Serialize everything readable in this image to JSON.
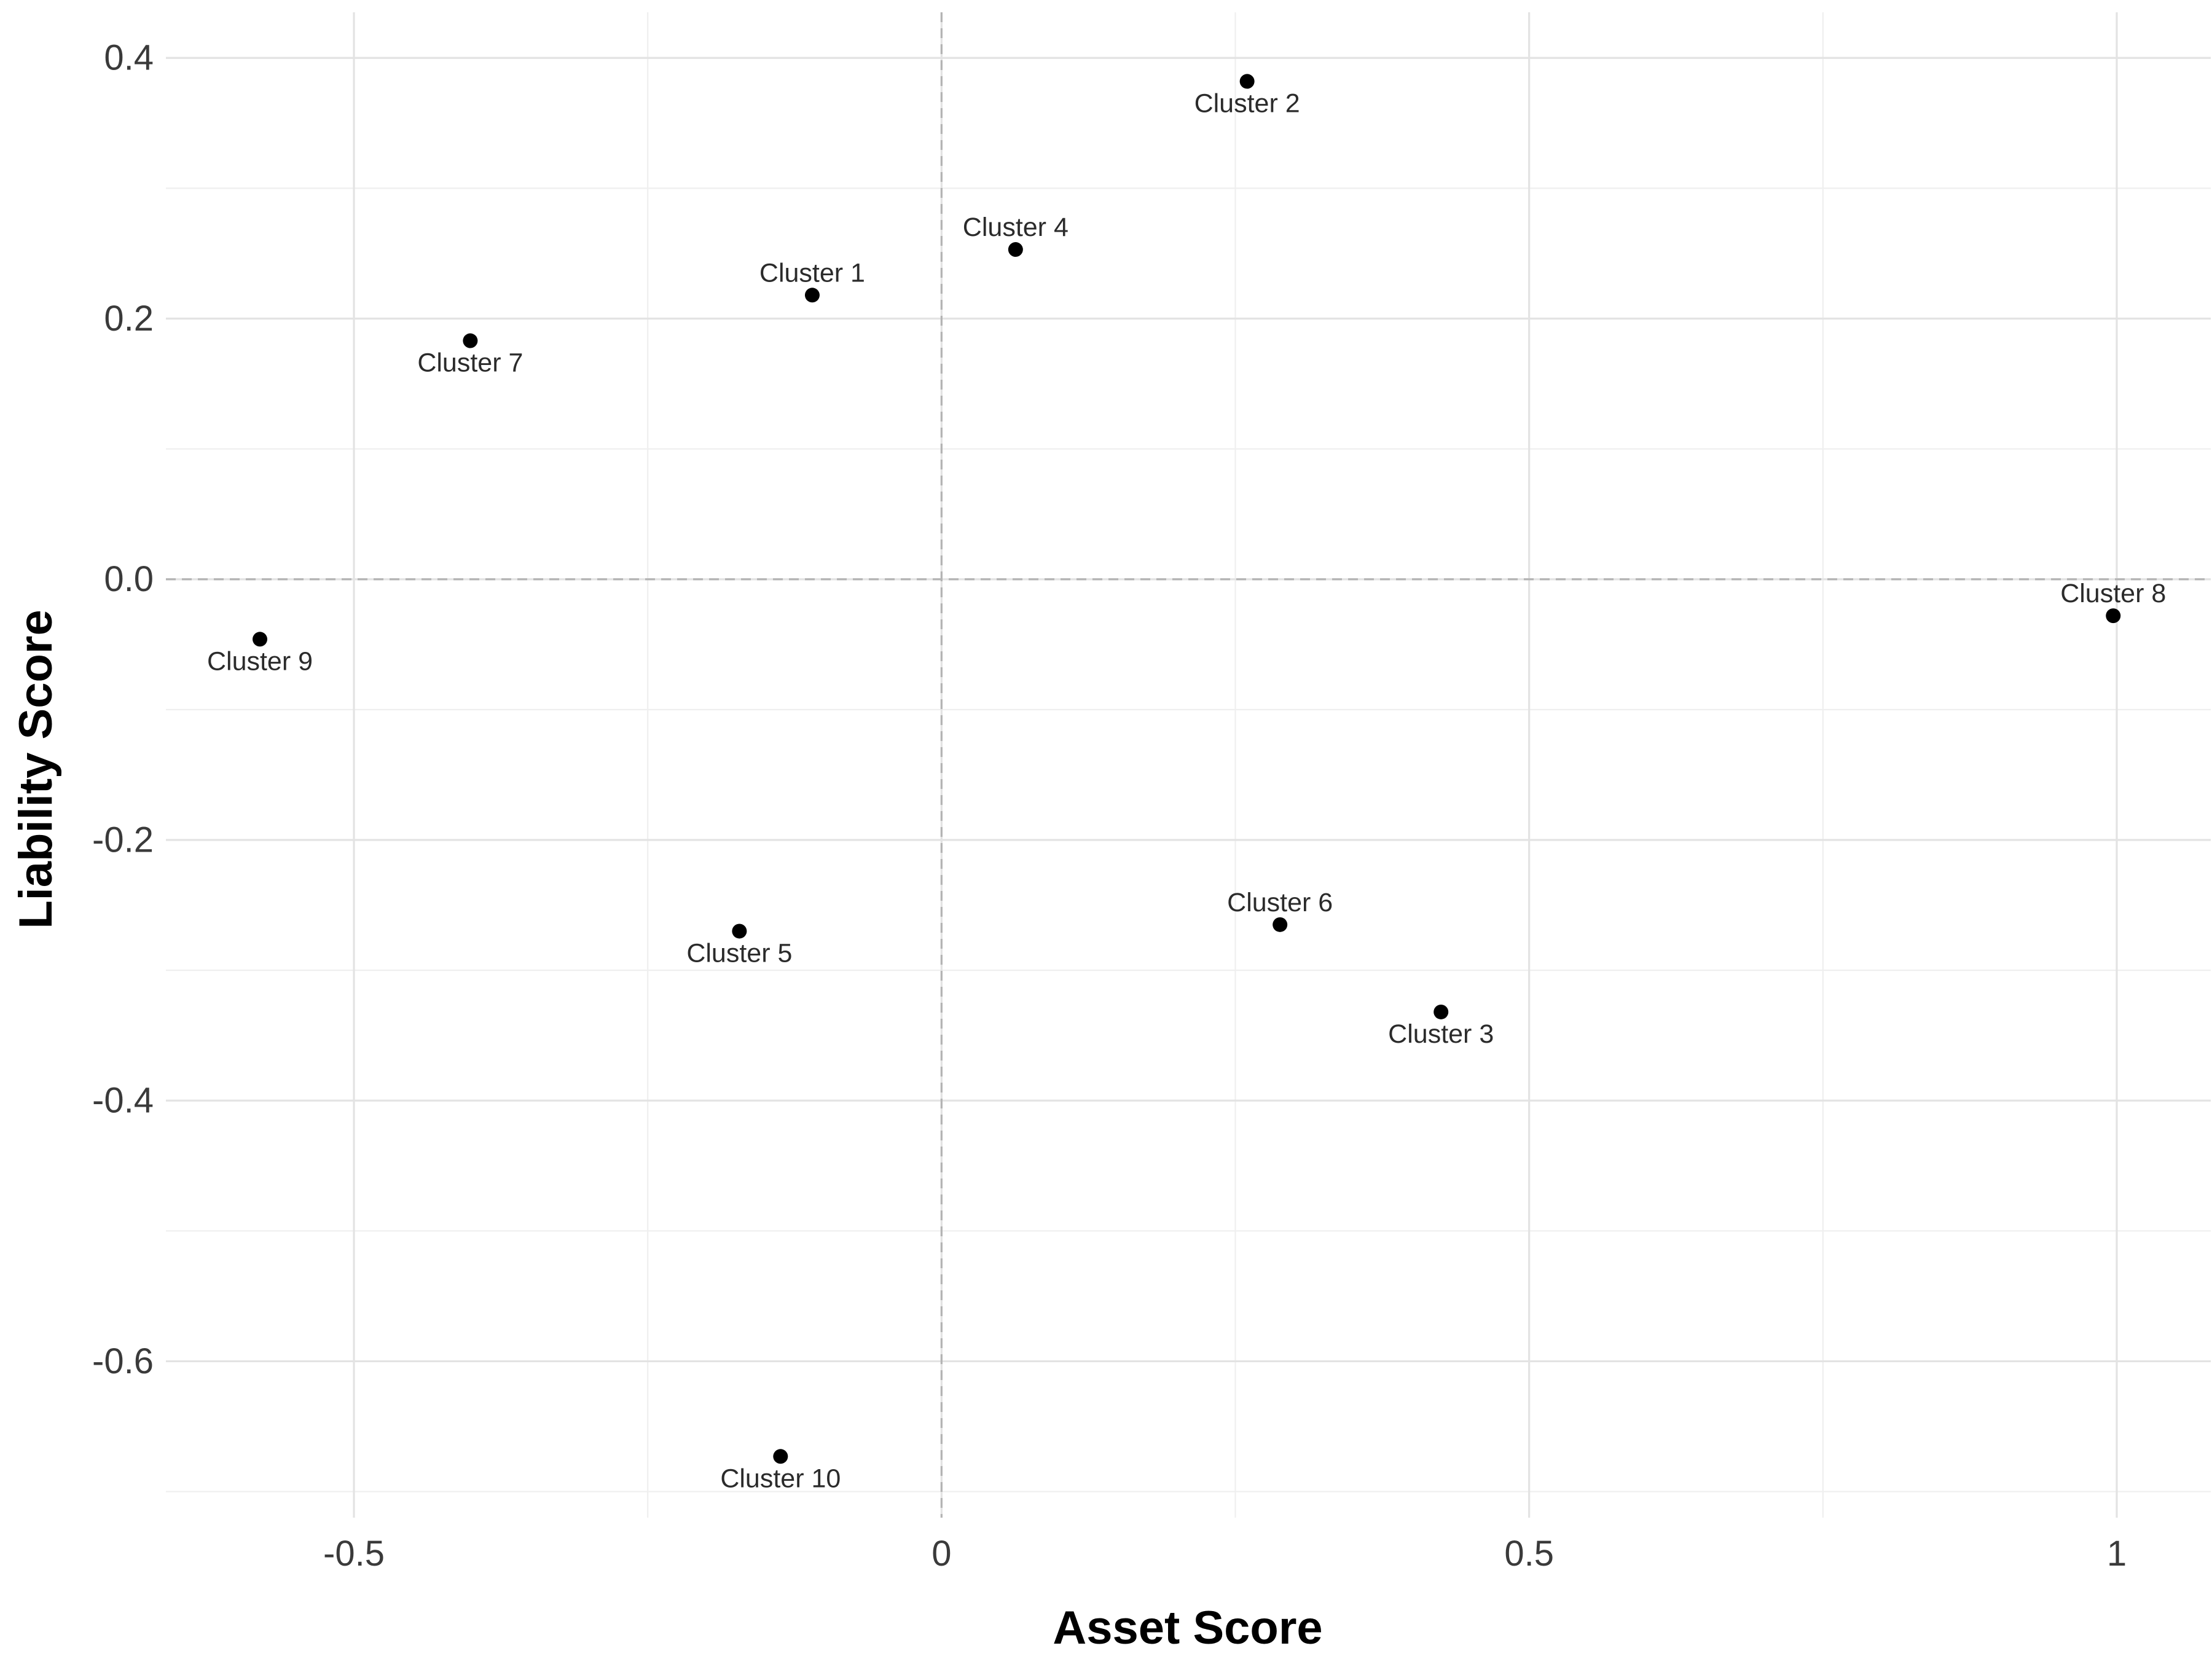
{
  "chart_data": {
    "type": "scatter",
    "title": "",
    "xlabel": "Asset Score",
    "ylabel": "Liability Score",
    "xlim": [
      -0.66,
      1.08
    ],
    "ylim": [
      -0.72,
      0.435
    ],
    "x_ticks": [
      -0.5,
      0,
      0.5,
      1
    ],
    "x_tick_labels": [
      "-0.5",
      "0",
      "0.5",
      "1"
    ],
    "y_ticks": [
      0.4,
      0.2,
      0.0,
      -0.2,
      -0.4,
      -0.6
    ],
    "y_tick_labels": [
      "0.4",
      "0.2",
      "0.0",
      "-0.2",
      "-0.4",
      "-0.6"
    ],
    "x_minor_ticks": [
      -0.25,
      0.25,
      0.75
    ],
    "y_minor_ticks": [
      0.3,
      0.1,
      -0.1,
      -0.3,
      -0.5,
      -0.7
    ],
    "grid": true,
    "reference_lines": {
      "x": 0,
      "y": 0,
      "style": "dashed"
    },
    "legend": "none",
    "point_color": "#000000",
    "points": [
      {
        "label": "Cluster 1",
        "x": -0.11,
        "y": 0.218,
        "label_pos": "above"
      },
      {
        "label": "Cluster 2",
        "x": 0.26,
        "y": 0.382,
        "label_pos": "below"
      },
      {
        "label": "Cluster 3",
        "x": 0.425,
        "y": -0.332,
        "label_pos": "below"
      },
      {
        "label": "Cluster 4",
        "x": 0.063,
        "y": 0.253,
        "label_pos": "above"
      },
      {
        "label": "Cluster 5",
        "x": -0.172,
        "y": -0.27,
        "label_pos": "below"
      },
      {
        "label": "Cluster 6",
        "x": 0.288,
        "y": -0.265,
        "label_pos": "above"
      },
      {
        "label": "Cluster 7",
        "x": -0.401,
        "y": 0.183,
        "label_pos": "below"
      },
      {
        "label": "Cluster 8",
        "x": 0.997,
        "y": -0.028,
        "label_pos": "above"
      },
      {
        "label": "Cluster 9",
        "x": -0.58,
        "y": -0.046,
        "label_pos": "below"
      },
      {
        "label": "Cluster 10",
        "x": -0.137,
        "y": -0.673,
        "label_pos": "below"
      }
    ]
  }
}
